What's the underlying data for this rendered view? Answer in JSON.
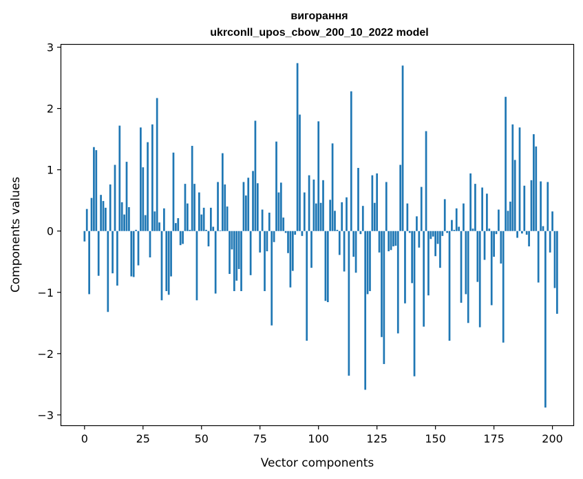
{
  "chart_data": {
    "type": "bar",
    "title": "вигорання",
    "subtitle": "ukrconll_upos_cbow_200_10_2022 model",
    "xlabel": "Vector components",
    "ylabel": "Components values",
    "xlim": [
      -9.95,
      208.95
    ],
    "ylim": [
      -3.17,
      3.04
    ],
    "xticks": [
      0,
      25,
      50,
      75,
      100,
      125,
      150,
      175,
      200
    ],
    "yticks": [
      -3,
      -2,
      -1,
      0,
      1,
      2,
      3
    ],
    "xtick_labels": [
      "0",
      "25",
      "50",
      "75",
      "100",
      "125",
      "150",
      "175",
      "200"
    ],
    "ytick_labels": [
      "−3",
      "−2",
      "−1",
      "0",
      "1",
      "2",
      "3"
    ],
    "grid": false,
    "bar_color": "#1f77b4",
    "values": [
      -0.17,
      0.36,
      -1.03,
      0.54,
      1.37,
      1.32,
      -0.73,
      0.59,
      0.49,
      0.38,
      -1.32,
      0.76,
      -0.69,
      1.08,
      -0.89,
      1.72,
      0.47,
      0.27,
      1.13,
      0.39,
      -0.74,
      -0.75,
      0.02,
      -0.56,
      1.69,
      1.04,
      0.26,
      1.45,
      -0.43,
      1.74,
      0.32,
      2.17,
      0.14,
      -1.13,
      0.37,
      -0.98,
      -1.04,
      -0.74,
      1.28,
      0.13,
      0.21,
      -0.23,
      -0.21,
      0.77,
      0.45,
      0.02,
      1.39,
      0.77,
      -1.13,
      0.63,
      0.27,
      0.38,
      0.02,
      -0.25,
      0.38,
      0.07,
      -1.02,
      0.8,
      0.01,
      1.27,
      0.76,
      0.4,
      -0.7,
      -0.3,
      -0.98,
      -0.81,
      -0.62,
      -0.98,
      0.8,
      0.58,
      0.87,
      -0.72,
      0.98,
      1.8,
      0.78,
      -0.35,
      0.35,
      -0.98,
      -0.33,
      0.3,
      -1.54,
      -0.18,
      1.46,
      0.63,
      0.79,
      0.22,
      -0.03,
      -0.36,
      -0.92,
      -0.65,
      -0.06,
      2.74,
      1.9,
      -0.08,
      0.63,
      -1.79,
      0.91,
      -0.6,
      0.84,
      0.45,
      1.79,
      0.46,
      0.83,
      -1.14,
      -1.16,
      0.51,
      1.43,
      0.33,
      0.02,
      -0.39,
      0.47,
      -0.66,
      0.55,
      -2.36,
      2.28,
      -0.42,
      -0.68,
      1.03,
      -0.05,
      0.41,
      -2.59,
      -1.03,
      -0.98,
      0.91,
      0.46,
      0.94,
      -0.35,
      -1.73,
      -2.17,
      0.8,
      -0.33,
      -0.31,
      -0.25,
      -0.24,
      -1.67,
      1.08,
      2.7,
      -1.18,
      0.45,
      -0.03,
      -0.85,
      -2.37,
      0.24,
      -0.27,
      0.72,
      -1.56,
      1.63,
      -1.05,
      -0.13,
      -0.09,
      -0.41,
      -0.21,
      -0.6,
      -0.08,
      0.52,
      -0.03,
      -1.79,
      0.18,
      0.02,
      0.37,
      0.07,
      -1.17,
      0.45,
      -1.03,
      -1.5,
      0.94,
      0.04,
      0.77,
      -0.83,
      -1.57,
      0.71,
      -0.47,
      0.61,
      0.04,
      -1.21,
      -0.42,
      -0.05,
      0.35,
      -0.53,
      -1.82,
      2.19,
      0.33,
      0.48,
      1.74,
      1.16,
      -0.11,
      1.69,
      -0.04,
      0.74,
      -0.06,
      -0.25,
      0.83,
      1.58,
      1.38,
      -0.84,
      0.81,
      0.08,
      -2.88,
      0.8,
      -0.35,
      0.32,
      -0.93,
      -1.35
    ]
  }
}
